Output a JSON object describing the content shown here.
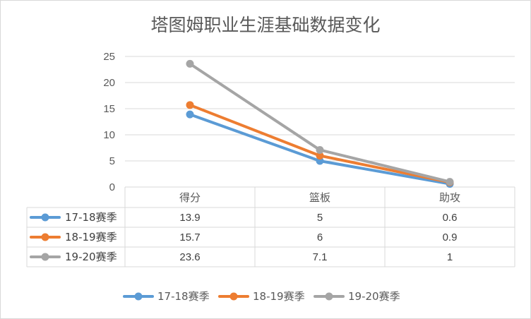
{
  "chart_data": {
    "type": "line",
    "title": "塔图姆职业生涯基础数据变化",
    "categories": [
      "得分",
      "篮板",
      "助攻"
    ],
    "ylim": [
      0,
      25
    ],
    "yticks": [
      "0",
      "5",
      "10",
      "15",
      "20",
      "25"
    ],
    "grid": true,
    "legend_position": "bottom",
    "data_table": true,
    "series": [
      {
        "name": "17-18赛季",
        "color": "#5B9BD5",
        "values": [
          13.9,
          5,
          0.6
        ],
        "display": [
          "13.9",
          "5",
          "0.6"
        ]
      },
      {
        "name": "18-19赛季",
        "color": "#ED7D31",
        "values": [
          15.7,
          6,
          0.9
        ],
        "display": [
          "15.7",
          "6",
          "0.9"
        ]
      },
      {
        "name": "19-20赛季",
        "color": "#A5A5A5",
        "values": [
          23.6,
          7.1,
          1
        ],
        "display": [
          "23.6",
          "7.1",
          "1"
        ]
      }
    ]
  }
}
